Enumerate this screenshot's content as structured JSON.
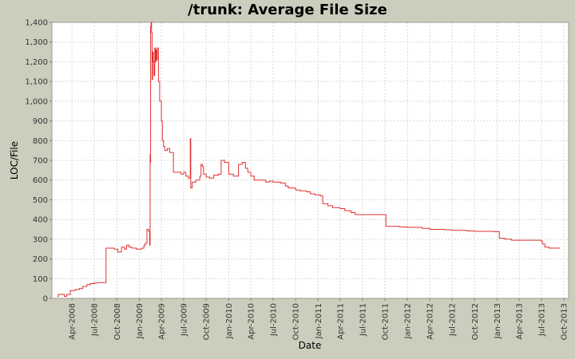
{
  "chart_data": {
    "type": "line",
    "title": "/trunk: Average File Size",
    "xlabel": "Date",
    "ylabel": "LOC/File",
    "ylim": [
      0,
      1400
    ],
    "y_ticks": [
      0,
      100,
      200,
      300,
      400,
      500,
      600,
      700,
      800,
      900,
      1000,
      1100,
      1200,
      1300,
      1400
    ],
    "y_tick_labels": [
      "0",
      "100",
      "200",
      "300",
      "400",
      "500",
      "600",
      "700",
      "800",
      "900",
      "1,000",
      "1,100",
      "1,200",
      "1,300",
      "1,400"
    ],
    "xlim": [
      "2008-01-10",
      "2013-10-20"
    ],
    "x_ticks": [
      "2008-04-01",
      "2008-07-01",
      "2008-10-01",
      "2009-01-01",
      "2009-04-01",
      "2009-07-01",
      "2009-10-01",
      "2010-01-01",
      "2010-04-01",
      "2010-07-01",
      "2010-10-01",
      "2011-01-01",
      "2011-04-01",
      "2011-07-01",
      "2011-10-01",
      "2012-01-01",
      "2012-04-01",
      "2012-07-01",
      "2012-10-01",
      "2013-01-01",
      "2013-04-01",
      "2013-07-01",
      "2013-10-01"
    ],
    "x_tick_labels": [
      "Apr-2008",
      "Jul-2008",
      "Oct-2008",
      "Jan-2009",
      "Apr-2009",
      "Jul-2009",
      "Oct-2009",
      "Jan-2010",
      "Apr-2010",
      "Jul-2010",
      "Oct-2010",
      "Jan-2011",
      "Apr-2011",
      "Jul-2011",
      "Oct-2011",
      "Jan-2012",
      "Apr-2012",
      "Jul-2012",
      "Oct-2012",
      "Jan-2013",
      "Apr-2013",
      "Jul-2013",
      "Oct-2013"
    ],
    "grid": true,
    "legend": "none",
    "step": true,
    "line_color": "#e03030",
    "series": [
      {
        "points": [
          [
            "2008-02-01",
            10
          ],
          [
            "2008-02-05",
            20
          ],
          [
            "2008-02-25",
            20
          ],
          [
            "2008-03-01",
            10
          ],
          [
            "2008-03-10",
            20
          ],
          [
            "2008-03-25",
            40
          ],
          [
            "2008-04-15",
            45
          ],
          [
            "2008-05-01",
            50
          ],
          [
            "2008-05-15",
            60
          ],
          [
            "2008-06-01",
            70
          ],
          [
            "2008-06-15",
            75
          ],
          [
            "2008-07-01",
            78
          ],
          [
            "2008-07-15",
            80
          ],
          [
            "2008-08-15",
            80
          ],
          [
            "2008-08-18",
            255
          ],
          [
            "2008-09-01",
            255
          ],
          [
            "2008-09-20",
            250
          ],
          [
            "2008-10-01",
            250
          ],
          [
            "2008-10-05",
            235
          ],
          [
            "2008-10-15",
            235
          ],
          [
            "2008-10-20",
            260
          ],
          [
            "2008-11-01",
            250
          ],
          [
            "2008-11-10",
            270
          ],
          [
            "2008-11-20",
            260
          ],
          [
            "2008-12-01",
            255
          ],
          [
            "2008-12-20",
            250
          ],
          [
            "2009-01-10",
            255
          ],
          [
            "2009-01-20",
            270
          ],
          [
            "2009-01-25",
            280
          ],
          [
            "2009-02-01",
            350
          ],
          [
            "2009-02-08",
            340
          ],
          [
            "2009-02-12",
            270
          ],
          [
            "2009-02-14",
            730
          ],
          [
            "2009-02-15",
            690
          ],
          [
            "2009-02-16",
            1380
          ],
          [
            "2009-02-18",
            1400
          ],
          [
            "2009-02-20",
            1350
          ],
          [
            "2009-02-22",
            1110
          ],
          [
            "2009-02-24",
            1250
          ],
          [
            "2009-02-27",
            1200
          ],
          [
            "2009-03-02",
            1130
          ],
          [
            "2009-03-05",
            1270
          ],
          [
            "2009-03-08",
            1200
          ],
          [
            "2009-03-10",
            1260
          ],
          [
            "2009-03-12",
            1210
          ],
          [
            "2009-03-15",
            1270
          ],
          [
            "2009-03-20",
            1100
          ],
          [
            "2009-03-25",
            1000
          ],
          [
            "2009-04-01",
            900
          ],
          [
            "2009-04-05",
            800
          ],
          [
            "2009-04-10",
            770
          ],
          [
            "2009-04-15",
            750
          ],
          [
            "2009-04-25",
            760
          ],
          [
            "2009-05-05",
            740
          ],
          [
            "2009-05-20",
            640
          ],
          [
            "2009-06-20",
            630
          ],
          [
            "2009-07-01",
            640
          ],
          [
            "2009-07-10",
            620
          ],
          [
            "2009-07-20",
            610
          ],
          [
            "2009-07-28",
            810
          ],
          [
            "2009-07-30",
            560
          ],
          [
            "2009-08-05",
            590
          ],
          [
            "2009-08-20",
            600
          ],
          [
            "2009-09-05",
            620
          ],
          [
            "2009-09-10",
            680
          ],
          [
            "2009-09-15",
            670
          ],
          [
            "2009-09-20",
            630
          ],
          [
            "2009-10-01",
            615
          ],
          [
            "2009-10-15",
            610
          ],
          [
            "2009-11-01",
            625
          ],
          [
            "2009-11-20",
            630
          ],
          [
            "2009-12-01",
            700
          ],
          [
            "2009-12-15",
            690
          ],
          [
            "2010-01-01",
            630
          ],
          [
            "2010-01-20",
            620
          ],
          [
            "2010-02-10",
            680
          ],
          [
            "2010-02-25",
            690
          ],
          [
            "2010-03-10",
            660
          ],
          [
            "2010-03-20",
            640
          ],
          [
            "2010-04-01",
            620
          ],
          [
            "2010-04-15",
            600
          ],
          [
            "2010-05-15",
            600
          ],
          [
            "2010-06-01",
            590
          ],
          [
            "2010-06-15",
            595
          ],
          [
            "2010-07-01",
            590
          ],
          [
            "2010-08-01",
            585
          ],
          [
            "2010-08-20",
            570
          ],
          [
            "2010-09-01",
            560
          ],
          [
            "2010-10-01",
            550
          ],
          [
            "2010-10-20",
            545
          ],
          [
            "2010-11-15",
            540
          ],
          [
            "2010-12-01",
            530
          ],
          [
            "2010-12-20",
            525
          ],
          [
            "2011-01-10",
            520
          ],
          [
            "2011-01-20",
            480
          ],
          [
            "2011-02-10",
            470
          ],
          [
            "2011-03-01",
            460
          ],
          [
            "2011-04-01",
            455
          ],
          [
            "2011-04-20",
            445
          ],
          [
            "2011-05-15",
            435
          ],
          [
            "2011-06-01",
            425
          ],
          [
            "2011-07-01",
            425
          ],
          [
            "2011-08-01",
            425
          ],
          [
            "2011-10-01",
            425
          ],
          [
            "2011-10-05",
            365
          ],
          [
            "2011-12-01",
            362
          ],
          [
            "2012-01-01",
            360
          ],
          [
            "2012-03-01",
            355
          ],
          [
            "2012-04-01",
            350
          ],
          [
            "2012-06-01",
            348
          ],
          [
            "2012-07-01",
            345
          ],
          [
            "2012-09-01",
            342
          ],
          [
            "2012-10-01",
            340
          ],
          [
            "2012-12-20",
            338
          ],
          [
            "2013-01-10",
            305
          ],
          [
            "2013-02-01",
            300
          ],
          [
            "2013-03-01",
            295
          ],
          [
            "2013-04-01",
            295
          ],
          [
            "2013-06-15",
            295
          ],
          [
            "2013-07-01",
            290
          ],
          [
            "2013-07-05",
            275
          ],
          [
            "2013-07-15",
            260
          ],
          [
            "2013-08-01",
            255
          ],
          [
            "2013-09-15",
            255
          ]
        ]
      }
    ]
  }
}
